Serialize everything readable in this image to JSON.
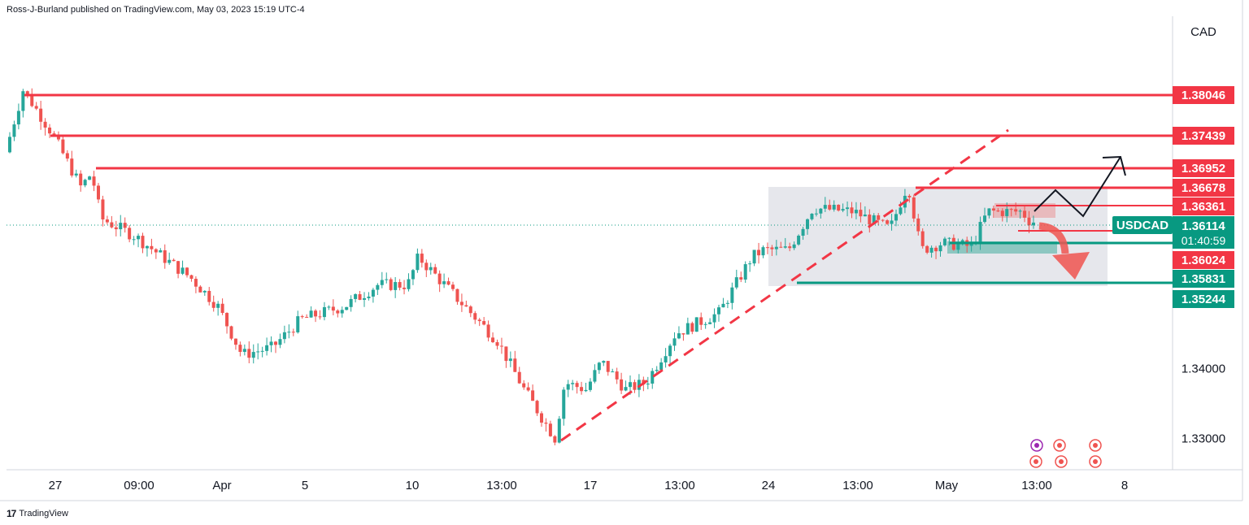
{
  "header": {
    "published": "Ross-J-Burland published on TradingView.com, May 03, 2023 15:19 UTC-4"
  },
  "footer": {
    "brand": "TradingView",
    "logo": "17"
  },
  "colors": {
    "up": "#26a69a",
    "down": "#ef5350",
    "resistance": "#f23645",
    "support": "#089981",
    "current": "#089981",
    "range_box": "#d1d4dc",
    "text": "#131722"
  },
  "chart_data": {
    "type": "candlestick",
    "symbol": "USDCAD",
    "currency": "CAD",
    "ylim": [
      1.3255,
      1.3905
    ],
    "x_labels": [
      "27",
      "09:00",
      "Apr",
      "5",
      "10",
      "13:00",
      "17",
      "13:00",
      "24",
      "13:00",
      "May",
      "13:00",
      "8"
    ],
    "y_ticks": [
      "1.34000",
      "1.33000"
    ],
    "current_price": {
      "label": "USDCAD",
      "value": "1.36114",
      "countdown": "01:40:59"
    },
    "resistance_levels": [
      "1.38046",
      "1.37439",
      "1.36952",
      "1.36678",
      "1.36361",
      "1.36024"
    ],
    "support_levels": [
      "1.35831",
      "1.35244"
    ],
    "key_points": [
      {
        "label": "27",
        "price": 1.377
      },
      {
        "label": "09:00",
        "price": 1.366
      },
      {
        "label": "Apr",
        "price": 1.349
      },
      {
        "label": "5",
        "price": 1.351
      },
      {
        "label": "10",
        "price": 1.357
      },
      {
        "label": "13:00",
        "price": 1.35
      },
      {
        "label": "17",
        "price": 1.337
      },
      {
        "label": "13:00",
        "price": 1.342
      },
      {
        "label": "24",
        "price": 1.358
      },
      {
        "label": "13:00",
        "price": 1.363
      },
      {
        "label": "May",
        "price": 1.3585
      },
      {
        "label": "13:00",
        "price": 1.3625
      }
    ],
    "grid": false,
    "annotations": [
      "range box",
      "rising dashed trendline",
      "bullish zig-zag projection",
      "bearish red arrow",
      "economic event icons"
    ]
  }
}
